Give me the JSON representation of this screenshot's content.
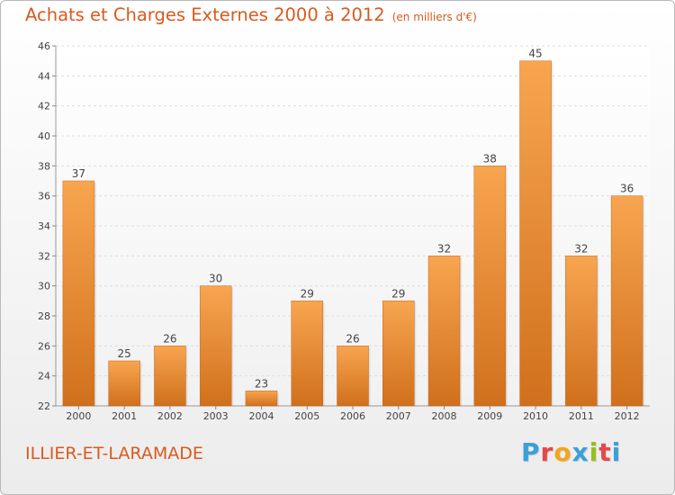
{
  "header": {
    "title": "Achats et Charges Externes 2000 à 2012",
    "unit": "(en milliers d'€)"
  },
  "footer": {
    "commune": "ILLIER-ET-LARAMADE",
    "logo_text": "Proxiti",
    "logo_colors": [
      "#3aa0d8",
      "#e54848",
      "#f2a51e",
      "#3aa0d8",
      "#94c21a",
      "#e54848",
      "#3aa0d8"
    ]
  },
  "colors": {
    "title": "#d95a1e",
    "bar_light": "#f8a550",
    "bar_dark": "#d0701c"
  },
  "chart_data": {
    "type": "bar",
    "categories": [
      "2000",
      "2001",
      "2002",
      "2003",
      "2004",
      "2005",
      "2006",
      "2007",
      "2008",
      "2009",
      "2010",
      "2011",
      "2012"
    ],
    "values": [
      37,
      25,
      26,
      30,
      23,
      29,
      26,
      29,
      32,
      38,
      45,
      32,
      36
    ],
    "ylim": [
      22,
      46
    ],
    "yticks": [
      22,
      24,
      26,
      28,
      30,
      32,
      34,
      36,
      38,
      40,
      42,
      44,
      46
    ],
    "grid": true,
    "data_labels": true
  }
}
